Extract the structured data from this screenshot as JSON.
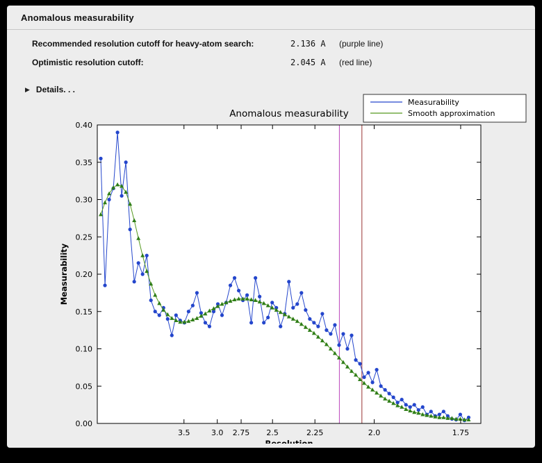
{
  "header": {
    "title": "Anomalous measurability"
  },
  "cutoffs": [
    {
      "label": "Recommended resolution cutoff for heavy-atom search:",
      "value": "2.136 A",
      "note": "(purple line)"
    },
    {
      "label": "Optimistic resolution cutoff:",
      "value": "2.045 A",
      "note": "(red line)"
    }
  ],
  "details": {
    "label": "Details. . ."
  },
  "colors": {
    "window_bg": "#ededed",
    "frame_bg": "#000000",
    "measurability_blue": "#2446cc",
    "smooth_green_line": "#55991f",
    "smooth_green_marker": "#2e7d17",
    "purple_cutoff_line": "#bb44bb",
    "red_cutoff_line": "#993333"
  },
  "chart_data": {
    "type": "line",
    "title": "Anomalous measurability",
    "x_axis": {
      "label": "Resolution",
      "note": "x plotted as 1/d^2, resolution (Angstrom) decreases to the right",
      "tick_labels": [
        "3.5",
        "3.0",
        "2.75",
        "2.5",
        "2.25",
        "2.0",
        "1.75"
      ],
      "range_invsq": [
        0.0049,
        0.3444
      ]
    },
    "y_axis": {
      "label": "Measurability",
      "ticks": [
        0.0,
        0.05,
        0.1,
        0.15,
        0.2,
        0.25,
        0.3,
        0.35,
        0.4
      ],
      "range": [
        0.0,
        0.4
      ]
    },
    "legend": {
      "position": "top-right",
      "entries": [
        "Measurability",
        "Smooth approximation"
      ]
    },
    "cutoff_lines": [
      {
        "name": "recommended-cutoff-line",
        "resolution_A": 2.136,
        "color": "#bb44bb",
        "note": "purple line"
      },
      {
        "name": "optimistic-cutoff-line",
        "resolution_A": 2.045,
        "color": "#993333",
        "note": "red line"
      }
    ],
    "series": [
      {
        "id": "measurability-series",
        "name": "Measurability",
        "marker": "circle",
        "line_color": "#2446cc",
        "marker_color": "#2446cc",
        "x_invsq": [
          0.008,
          0.0117,
          0.0154,
          0.0191,
          0.0228,
          0.0265,
          0.0302,
          0.0339,
          0.0376,
          0.0413,
          0.045,
          0.0487,
          0.0524,
          0.0561,
          0.0598,
          0.0635,
          0.0672,
          0.0709,
          0.0746,
          0.0783,
          0.082,
          0.0857,
          0.0894,
          0.0931,
          0.0968,
          0.1005,
          0.1042,
          0.1079,
          0.1116,
          0.1153,
          0.119,
          0.1227,
          0.1264,
          0.1301,
          0.1338,
          0.1375,
          0.1412,
          0.1449,
          0.1486,
          0.1523,
          0.156,
          0.1597,
          0.1634,
          0.1671,
          0.1708,
          0.1745,
          0.1782,
          0.1819,
          0.1856,
          0.1893,
          0.193,
          0.1967,
          0.2004,
          0.2041,
          0.2078,
          0.2115,
          0.2152,
          0.2189,
          0.2226,
          0.2263,
          0.23,
          0.2337,
          0.2374,
          0.2411,
          0.2448,
          0.2485,
          0.2522,
          0.2559,
          0.2596,
          0.2633,
          0.267,
          0.2707,
          0.2744,
          0.2781,
          0.2818,
          0.2855,
          0.2892,
          0.2929,
          0.2966,
          0.3003,
          0.304,
          0.3077,
          0.3114,
          0.3151,
          0.3188,
          0.3225,
          0.3262,
          0.3299,
          0.3336
        ],
        "y": [
          0.355,
          0.185,
          0.3,
          0.315,
          0.39,
          0.305,
          0.35,
          0.26,
          0.19,
          0.215,
          0.2,
          0.225,
          0.165,
          0.15,
          0.145,
          0.155,
          0.14,
          0.118,
          0.145,
          0.138,
          0.135,
          0.15,
          0.158,
          0.175,
          0.148,
          0.135,
          0.13,
          0.15,
          0.16,
          0.145,
          0.162,
          0.185,
          0.195,
          0.178,
          0.165,
          0.172,
          0.135,
          0.195,
          0.17,
          0.135,
          0.142,
          0.162,
          0.155,
          0.13,
          0.147,
          0.19,
          0.155,
          0.16,
          0.175,
          0.152,
          0.14,
          0.135,
          0.13,
          0.147,
          0.125,
          0.12,
          0.132,
          0.105,
          0.12,
          0.1,
          0.118,
          0.085,
          0.08,
          0.062,
          0.068,
          0.055,
          0.072,
          0.05,
          0.045,
          0.04,
          0.035,
          0.028,
          0.032,
          0.025,
          0.022,
          0.025,
          0.018,
          0.022,
          0.012,
          0.016,
          0.01,
          0.012,
          0.016,
          0.01,
          0.006,
          0.005,
          0.012,
          0.004,
          0.008
        ]
      },
      {
        "id": "smooth-approximation-series",
        "name": "Smooth approximation",
        "marker": "triangle",
        "line_color": "#55991f",
        "marker_color": "#2e7d17",
        "x_invsq": [
          0.008,
          0.0117,
          0.0154,
          0.0191,
          0.0228,
          0.0265,
          0.0302,
          0.0339,
          0.0376,
          0.0413,
          0.045,
          0.0487,
          0.0524,
          0.0561,
          0.0598,
          0.0635,
          0.0672,
          0.0709,
          0.0746,
          0.0783,
          0.082,
          0.0857,
          0.0894,
          0.0931,
          0.0968,
          0.1005,
          0.1042,
          0.1079,
          0.1116,
          0.1153,
          0.119,
          0.1227,
          0.1264,
          0.1301,
          0.1338,
          0.1375,
          0.1412,
          0.1449,
          0.1486,
          0.1523,
          0.156,
          0.1597,
          0.1634,
          0.1671,
          0.1708,
          0.1745,
          0.1782,
          0.1819,
          0.1856,
          0.1893,
          0.193,
          0.1967,
          0.2004,
          0.2041,
          0.2078,
          0.2115,
          0.2152,
          0.2189,
          0.2226,
          0.2263,
          0.23,
          0.2337,
          0.2374,
          0.2411,
          0.2448,
          0.2485,
          0.2522,
          0.2559,
          0.2596,
          0.2633,
          0.267,
          0.2707,
          0.2744,
          0.2781,
          0.2818,
          0.2855,
          0.2892,
          0.2929,
          0.2966,
          0.3003,
          0.304,
          0.3077,
          0.3114,
          0.3151,
          0.3188,
          0.3225,
          0.3262,
          0.3299,
          0.3336
        ],
        "y": [
          0.28,
          0.296,
          0.308,
          0.316,
          0.32,
          0.318,
          0.31,
          0.294,
          0.272,
          0.248,
          0.225,
          0.204,
          0.187,
          0.172,
          0.161,
          0.152,
          0.146,
          0.141,
          0.138,
          0.136,
          0.136,
          0.137,
          0.139,
          0.141,
          0.144,
          0.147,
          0.151,
          0.154,
          0.157,
          0.16,
          0.162,
          0.164,
          0.166,
          0.167,
          0.167,
          0.167,
          0.166,
          0.165,
          0.163,
          0.161,
          0.158,
          0.155,
          0.152,
          0.149,
          0.146,
          0.143,
          0.14,
          0.137,
          0.133,
          0.129,
          0.125,
          0.121,
          0.116,
          0.111,
          0.106,
          0.1,
          0.094,
          0.088,
          0.082,
          0.076,
          0.07,
          0.065,
          0.059,
          0.054,
          0.049,
          0.045,
          0.041,
          0.037,
          0.033,
          0.03,
          0.027,
          0.024,
          0.022,
          0.019,
          0.017,
          0.015,
          0.014,
          0.012,
          0.011,
          0.01,
          0.009,
          0.008,
          0.008,
          0.007,
          0.007,
          0.006,
          0.006,
          0.005,
          0.005
        ]
      }
    ]
  }
}
